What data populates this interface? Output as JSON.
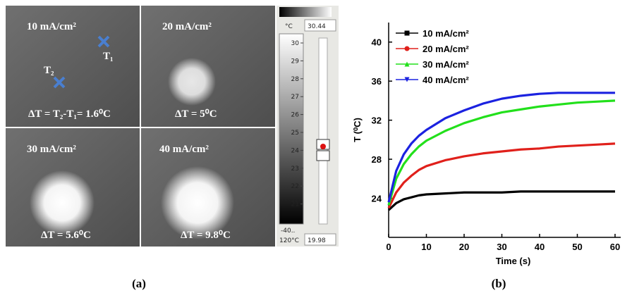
{
  "figure_a": {
    "panels": [
      {
        "label": "10 mA/cm²",
        "delta_t": "ΔT = T₂-T₁= 1.6⁰C"
      },
      {
        "label": "20 mA/cm²",
        "delta_t": "ΔT = 5⁰C"
      },
      {
        "label": "30 mA/cm²",
        "delta_t": "ΔT = 5.6⁰C"
      },
      {
        "label": "40 mA/cm²",
        "delta_t": "ΔT = 9.8⁰C"
      }
    ],
    "points": [
      "T₁",
      "T₂"
    ],
    "colorbar": {
      "max": "30.44",
      "unit": "°C",
      "ticks": [
        30,
        29,
        28,
        27,
        26,
        25,
        24,
        23,
        22,
        21
      ],
      "range_low": "-40..",
      "range_high": "120°C",
      "min": "19.98"
    },
    "panel_label": "(a)"
  },
  "chart_data": {
    "type": "line",
    "panel_label": "(b)",
    "x_label": "Time (s)",
    "y_label": "T (⁰C)",
    "x": [
      0,
      2,
      4,
      6,
      8,
      10,
      15,
      20,
      25,
      30,
      35,
      40,
      45,
      50,
      55,
      60
    ],
    "series": [
      {
        "name": "10 mA/cm²",
        "color": "#000000",
        "marker": "square",
        "values": [
          22.8,
          23.5,
          23.9,
          24.1,
          24.3,
          24.4,
          24.5,
          24.6,
          24.6,
          24.6,
          24.7,
          24.7,
          24.7,
          24.7,
          24.7,
          24.7
        ]
      },
      {
        "name": "20 mA/cm²",
        "color": "#e0201b",
        "marker": "circle",
        "values": [
          23.0,
          24.6,
          25.6,
          26.3,
          26.9,
          27.3,
          27.9,
          28.3,
          28.6,
          28.8,
          29.0,
          29.1,
          29.3,
          29.4,
          29.5,
          29.6
        ]
      },
      {
        "name": "30 mA/cm²",
        "color": "#22e01b",
        "marker": "triangle-up",
        "values": [
          23.3,
          26.0,
          27.5,
          28.5,
          29.3,
          29.9,
          30.9,
          31.7,
          32.3,
          32.8,
          33.1,
          33.4,
          33.6,
          33.8,
          33.9,
          34.0
        ]
      },
      {
        "name": "40 mA/cm²",
        "color": "#1b22e0",
        "marker": "triangle-down",
        "values": [
          23.6,
          26.8,
          28.5,
          29.6,
          30.4,
          31.0,
          32.2,
          33.0,
          33.7,
          34.2,
          34.5,
          34.7,
          34.8,
          34.8,
          34.8,
          34.8
        ]
      }
    ],
    "xlim": [
      0,
      61.5
    ],
    "xticks": [
      0,
      10,
      20,
      30,
      40,
      50,
      60
    ],
    "ylim": [
      20,
      42
    ],
    "yticks": [
      24,
      28,
      32,
      36,
      40
    ],
    "legend": "upper-left"
  }
}
